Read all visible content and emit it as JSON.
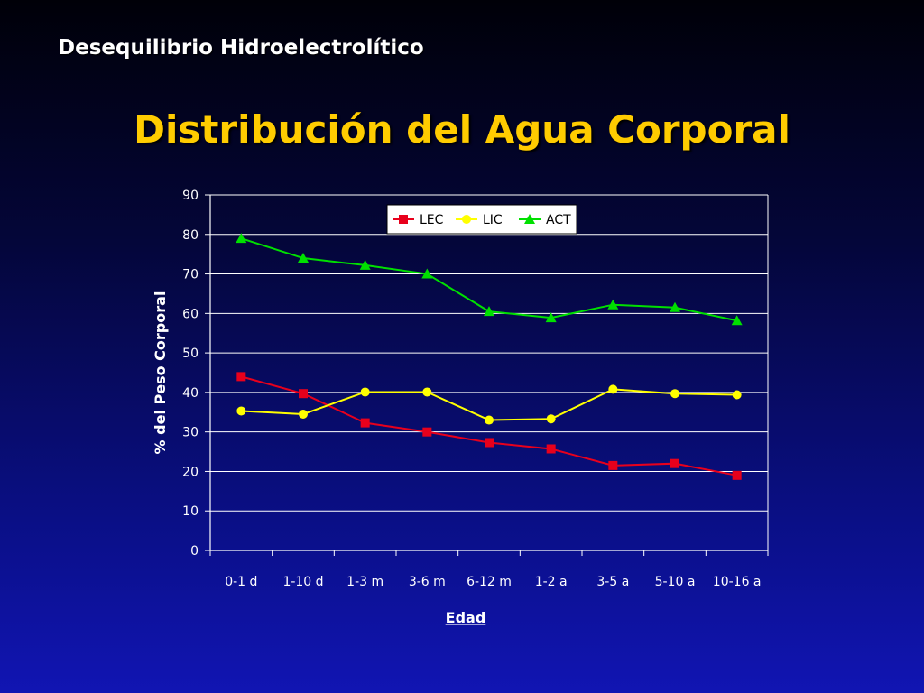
{
  "header": {
    "text": "Desequilibrio Hidroelectrolítico"
  },
  "chart_data": {
    "type": "line",
    "title": "Distribución del Agua Corporal",
    "xlabel": "Edad",
    "ylabel": "% del Peso Corporal",
    "categories": [
      "0-1 d",
      "1-10 d",
      "1-3 m",
      "3-6 m",
      "6-12 m",
      "1-2 a",
      "3-5 a",
      "5-10 a",
      "10-16 a"
    ],
    "ylim": [
      0,
      90
    ],
    "yticks": [
      0,
      10,
      20,
      30,
      40,
      50,
      60,
      70,
      80,
      90
    ],
    "grid": true,
    "legend_position": "top-center",
    "series": [
      {
        "name": "LEC",
        "color": "#e8001c",
        "marker": "square",
        "values": [
          44,
          39.7,
          32.3,
          30,
          27.3,
          25.7,
          21.5,
          22,
          19
        ]
      },
      {
        "name": "LIC",
        "color": "#ffff00",
        "marker": "circle",
        "values": [
          35.3,
          34.5,
          40.1,
          40.1,
          33,
          33.3,
          40.8,
          39.7,
          39.4
        ]
      },
      {
        "name": "ACT",
        "color": "#00e000",
        "marker": "triangle",
        "values": [
          79,
          74,
          72.2,
          70,
          60.5,
          58.9,
          62.2,
          61.5,
          58.2
        ]
      }
    ]
  }
}
